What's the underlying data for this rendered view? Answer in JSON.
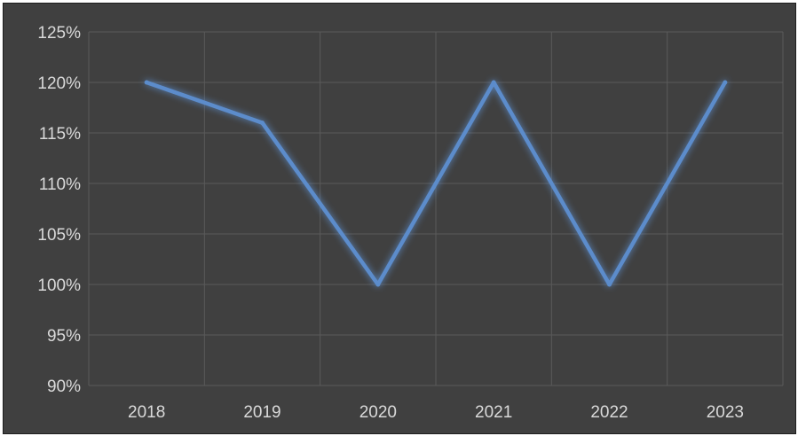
{
  "chart_data": {
    "type": "line",
    "title": "",
    "xlabel": "",
    "ylabel": "",
    "categories": [
      "2018",
      "2019",
      "2020",
      "2021",
      "2022",
      "2023"
    ],
    "series": [
      {
        "values": [
          120,
          116,
          100,
          120,
          100,
          120
        ],
        "color": "#5b8ccb"
      }
    ],
    "ylim": [
      90,
      125
    ],
    "ytick_step": 5,
    "y_tick_format": "percent",
    "grid": {
      "horizontal": true,
      "vertical": true,
      "color": "#5a5a5a"
    },
    "background": "#404040",
    "legend": "none"
  }
}
